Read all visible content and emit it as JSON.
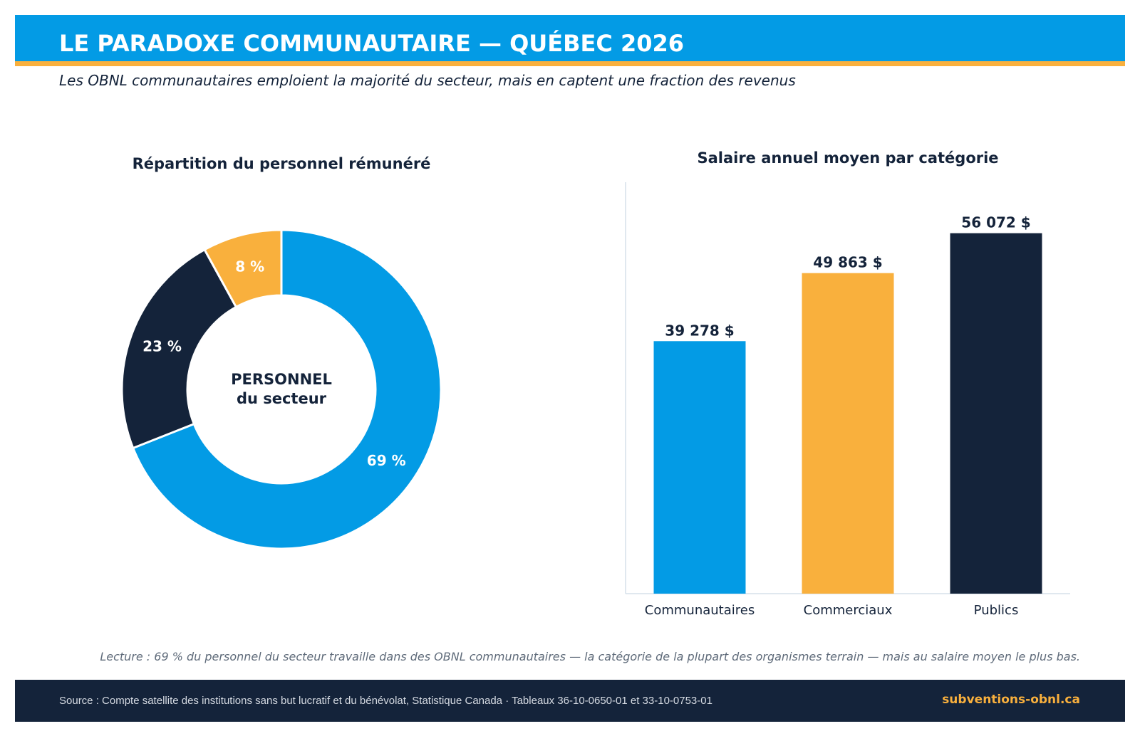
{
  "header": {
    "title": "LE PARADOXE COMMUNAUTAIRE — QUÉBEC 2026",
    "subtitle": "Les OBNL communautaires emploient la majorité du secteur, mais en captent une fraction des revenus"
  },
  "colors": {
    "blue": "#039be5",
    "orange": "#f9b03d",
    "navy": "#14233a"
  },
  "chart_data": [
    {
      "type": "pie",
      "title": "Répartition du personnel rémunéré",
      "center_label": [
        "PERSONNEL",
        "du secteur"
      ],
      "slices": [
        {
          "label": "69 %",
          "value": 69,
          "color": "#039be5"
        },
        {
          "label": "23 %",
          "value": 23,
          "color": "#14233a"
        },
        {
          "label": "8 %",
          "value": 8,
          "color": "#f9b03d"
        }
      ]
    },
    {
      "type": "bar",
      "title": "Salaire annuel moyen par catégorie",
      "categories": [
        "Communautaires",
        "Commerciaux",
        "Publics"
      ],
      "values": [
        39278,
        49863,
        56072
      ],
      "value_labels": [
        "39 278 $",
        "49 863 $",
        "56 072 $"
      ],
      "colors": [
        "#039be5",
        "#f9b03d",
        "#14233a"
      ],
      "ylim": [
        0,
        64000
      ],
      "grid": false
    }
  ],
  "note": "Lecture : 69 % du personnel du secteur travaille dans des OBNL communautaires — la catégorie de la plupart des organismes terrain — mais au salaire moyen le plus bas.",
  "footer": {
    "source": "Source : Compte satellite des institutions sans but lucratif et du bénévolat, Statistique Canada  ·  Tableaux 36-10-0650-01 et 33-10-0753-01",
    "site": "subventions-obnl.ca"
  }
}
